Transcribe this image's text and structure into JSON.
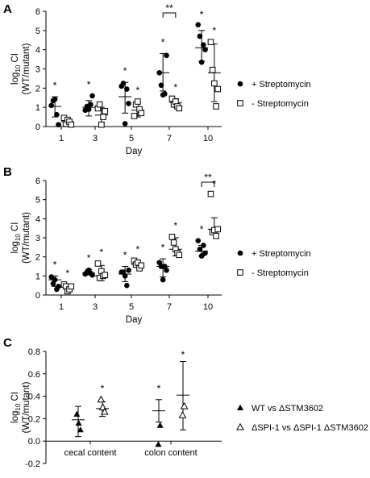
{
  "chart_data": [
    {
      "panel": "A",
      "type": "scatter",
      "xlabel": "Day",
      "ylabel": "(WT/mutant)",
      "ylabel_main": "log",
      "ylabel_sub": "10",
      "ylabel_tail": " CI",
      "ylim": [
        0,
        6
      ],
      "yticks": [
        "0",
        "1",
        "2",
        "3",
        "4",
        "5",
        "6"
      ],
      "categories": [
        "1",
        "3",
        "5",
        "7",
        "10"
      ],
      "series": [
        {
          "name": "+ Streptomycin",
          "marker": "circle-filled",
          "points": [
            [
              0.75,
              1.1
            ],
            [
              1.05,
              1.35
            ],
            [
              1.2,
              1.42
            ],
            [
              0.4,
              0.62
            ],
            [
              0.45,
              0.1
            ],
            [
              1.0,
              0.85
            ],
            [
              0.75,
              1.05
            ],
            [
              1.25,
              0.9
            ],
            [
              0.95,
              1.15
            ],
            [
              0.85,
              1.6
            ],
            [
              1.65,
              2.1
            ],
            [
              2.2,
              2.25
            ],
            [
              0.4,
              0.15
            ],
            [
              1.85,
              1.95
            ],
            [
              1.3,
              1.2
            ],
            [
              2.7,
              2.8
            ],
            [
              3.0,
              2.15
            ],
            [
              3.4,
              1.65
            ],
            [
              2.8,
              1.7
            ],
            [
              3.1,
              3.7
            ],
            [
              4.3,
              5.3
            ],
            [
              4.1,
              4.7
            ],
            [
              4.45,
              3.35
            ],
            [
              4.2,
              4.25
            ],
            [
              4.35,
              4.0
            ]
          ],
          "means": [
            1.05,
            1.0,
            1.55,
            2.8,
            4.1
          ],
          "sd_low": [
            0.5,
            0.55,
            0.7,
            1.85,
            3.4
          ],
          "sd_high": [
            1.55,
            1.35,
            2.3,
            3.8,
            5.0
          ]
        },
        {
          "name": "- Streptomycin",
          "marker": "square-open",
          "points": [
            [
              0.2,
              0.45
            ],
            [
              0.3,
              0.15
            ],
            [
              0.25,
              0.35
            ],
            [
              0.15,
              0.25
            ],
            [
              0.3,
              0.1
            ],
            [
              0.6,
              0.95
            ],
            [
              1.05,
              1.15
            ],
            [
              0.4,
              0.1
            ],
            [
              0.65,
              0.5
            ],
            [
              0.9,
              0.8
            ],
            [
              0.85,
              0.55
            ],
            [
              0.75,
              1.15
            ],
            [
              1.0,
              1.3
            ],
            [
              0.5,
              0.9
            ],
            [
              0.7,
              0.7
            ],
            [
              1.25,
              1.45
            ],
            [
              1.1,
              1.15
            ],
            [
              1.35,
              1.3
            ],
            [
              1.2,
              1.05
            ],
            [
              1.3,
              0.95
            ],
            [
              4.05,
              4.4
            ],
            [
              2.95,
              2.95
            ],
            [
              2.6,
              2.25
            ],
            [
              1.3,
              1.05
            ],
            [
              2.7,
              1.95
            ]
          ],
          "means": [
            0.25,
            0.6,
            0.85,
            1.25,
            2.8
          ],
          "sd_low": [
            0.05,
            0.2,
            0.5,
            1.0,
            1.3
          ],
          "sd_high": [
            0.45,
            1.0,
            1.25,
            1.45,
            4.3
          ]
        }
      ],
      "significance": [
        {
          "category": "1",
          "plus": "*",
          "minus": ""
        },
        {
          "category": "3",
          "plus": "*",
          "minus": ""
        },
        {
          "category": "5",
          "plus": "*",
          "minus": "*"
        },
        {
          "category": "7",
          "plus": "*",
          "minus": "*"
        },
        {
          "category": "10",
          "plus": "*",
          "minus": "*"
        }
      ],
      "bracket": {
        "category": "7",
        "label": "**"
      }
    },
    {
      "panel": "B",
      "type": "scatter",
      "xlabel": "Day",
      "ylabel": "(WT/mutant)",
      "ylabel_main": "log",
      "ylabel_sub": "10",
      "ylabel_tail": " CI",
      "ylim": [
        0,
        6
      ],
      "yticks": [
        "0",
        "1",
        "2",
        "3",
        "4",
        "5",
        "6"
      ],
      "categories": [
        "1",
        "3",
        "5",
        "7",
        "10"
      ],
      "series": [
        {
          "name": "+ Streptomycin",
          "marker": "circle-filled",
          "points": [
            [
              0.9,
              0.95
            ],
            [
              0.85,
              0.6
            ],
            [
              1.05,
              0.8
            ],
            [
              0.35,
              0.3
            ],
            [
              0.5,
              0.45
            ],
            [
              1.2,
              1.1
            ],
            [
              1.35,
              1.2
            ],
            [
              1.25,
              1.3
            ],
            [
              1.15,
              1.15
            ],
            [
              1.2,
              1.05
            ],
            [
              1.5,
              1.2
            ],
            [
              1.25,
              1.2
            ],
            [
              1.1,
              1.0
            ],
            [
              0.5,
              0.5
            ],
            [
              1.3,
              1.3
            ],
            [
              1.9,
              1.7
            ],
            [
              1.2,
              1.5
            ],
            [
              0.65,
              0.8
            ],
            [
              1.55,
              1.5
            ],
            [
              1.5,
              1.3
            ],
            [
              2.85,
              2.85
            ],
            [
              2.2,
              2.4
            ],
            [
              2.3,
              2.05
            ],
            [
              2.5,
              2.6
            ],
            [
              2.45,
              2.2
            ]
          ],
          "means": [
            0.8,
            1.15,
            1.1,
            1.5,
            2.3
          ],
          "sd_low": [
            0.45,
            1.05,
            0.7,
            0.95,
            2.05
          ],
          "sd_high": [
            1.0,
            1.35,
            1.5,
            1.9,
            2.6
          ]
        },
        {
          "name": "- Streptomycin",
          "marker": "square-open",
          "points": [
            [
              0.5,
              0.55
            ],
            [
              0.3,
              0.45
            ],
            [
              0.25,
              0.2
            ],
            [
              0.4,
              0.3
            ],
            [
              0.5,
              0.45
            ],
            [
              1.7,
              1.65
            ],
            [
              0.8,
              0.9
            ],
            [
              1.6,
              1.25
            ],
            [
              1.05,
              1.0
            ],
            [
              0.95,
              1.05
            ],
            [
              1.85,
              1.8
            ],
            [
              1.75,
              1.6
            ],
            [
              1.65,
              1.7
            ],
            [
              1.5,
              1.4
            ],
            [
              1.6,
              1.55
            ],
            [
              3.2,
              3.05
            ],
            [
              2.9,
              2.75
            ],
            [
              2.3,
              2.4
            ],
            [
              2.0,
              2.2
            ],
            [
              2.35,
              2.1
            ],
            [
              5.2,
              5.3
            ],
            [
              3.5,
              3.3
            ],
            [
              3.35,
              3.4
            ],
            [
              3.2,
              3.1
            ],
            [
              3.4,
              3.45
            ]
          ],
          "means": [
            0.4,
            1.0,
            1.6,
            2.4,
            3.45
          ],
          "sd_low": [
            0.25,
            0.75,
            1.45,
            2.05,
            3.2
          ],
          "sd_high": [
            0.55,
            1.55,
            1.8,
            3.0,
            4.05
          ]
        }
      ],
      "significance": [
        {
          "category": "1",
          "plus": "*",
          "minus": "*"
        },
        {
          "category": "3",
          "plus": "*",
          "minus": "*"
        },
        {
          "category": "5",
          "plus": "*",
          "minus": "*"
        },
        {
          "category": "7",
          "plus": "*",
          "minus": "*"
        },
        {
          "category": "10",
          "plus": "*",
          "minus": "*"
        }
      ],
      "bracket": {
        "category": "10",
        "label": "**"
      }
    },
    {
      "panel": "C",
      "type": "scatter",
      "xlabel": "",
      "ylabel": "(WT/mutant)",
      "ylabel_main": "log",
      "ylabel_sub": "10",
      "ylabel_tail": " CI",
      "ylim": [
        -0.2,
        0.8
      ],
      "yticks": [
        "-0.2",
        "0.0",
        "0.2",
        "0.4",
        "0.6",
        "0.8"
      ],
      "categories": [
        "cecal content",
        "colon content"
      ],
      "series": [
        {
          "name": "WT vs ΔSTM3602",
          "marker": "triangle-filled",
          "points": [
            [
              0.25,
              0.24
            ],
            [
              0.2,
              0.16
            ],
            [
              0.1,
              0.1
            ],
            [
              0.02,
              -0.03
            ],
            [
              0.18,
              0.14
            ]
          ],
          "means": [
            0.19,
            0.27
          ],
          "sd_low": [
            0.04,
            0.17
          ],
          "sd_high": [
            0.31,
            0.37
          ]
        },
        {
          "name": "ΔSPI-1 vs ΔSPI-1 ΔSTM3602",
          "marker": "triangle-open",
          "points": [
            [
              0.38,
              0.37
            ],
            [
              0.3,
              0.3
            ],
            [
              0.28,
              0.26
            ],
            [
              0.22,
              0.23
            ],
            [
              0.32,
              0.31
            ]
          ],
          "means": [
            0.29,
            0.41
          ],
          "sd_low": [
            0.22,
            0.1
          ],
          "sd_high": [
            0.35,
            0.71
          ]
        }
      ],
      "points_c2": [
        [
          [
            0.36,
            0.27
          ],
          [
            0.28,
            0.2
          ],
          [
            0.22,
            0.18
          ],
          [
            0.25,
            0.34
          ],
          [
            0.3,
            0.26
          ]
        ],
        [
          [
            0.7,
            0.46
          ],
          [
            0.35,
            0.12
          ],
          [
            0.15,
            0.0
          ],
          [
            0.4,
            0.5
          ],
          [
            0.45,
            0.62
          ]
        ]
      ],
      "significance": [
        {
          "category": "cecal content",
          "a": "",
          "b": "*"
        },
        {
          "category": "colon content",
          "a": "*",
          "b": "*"
        }
      ]
    }
  ]
}
